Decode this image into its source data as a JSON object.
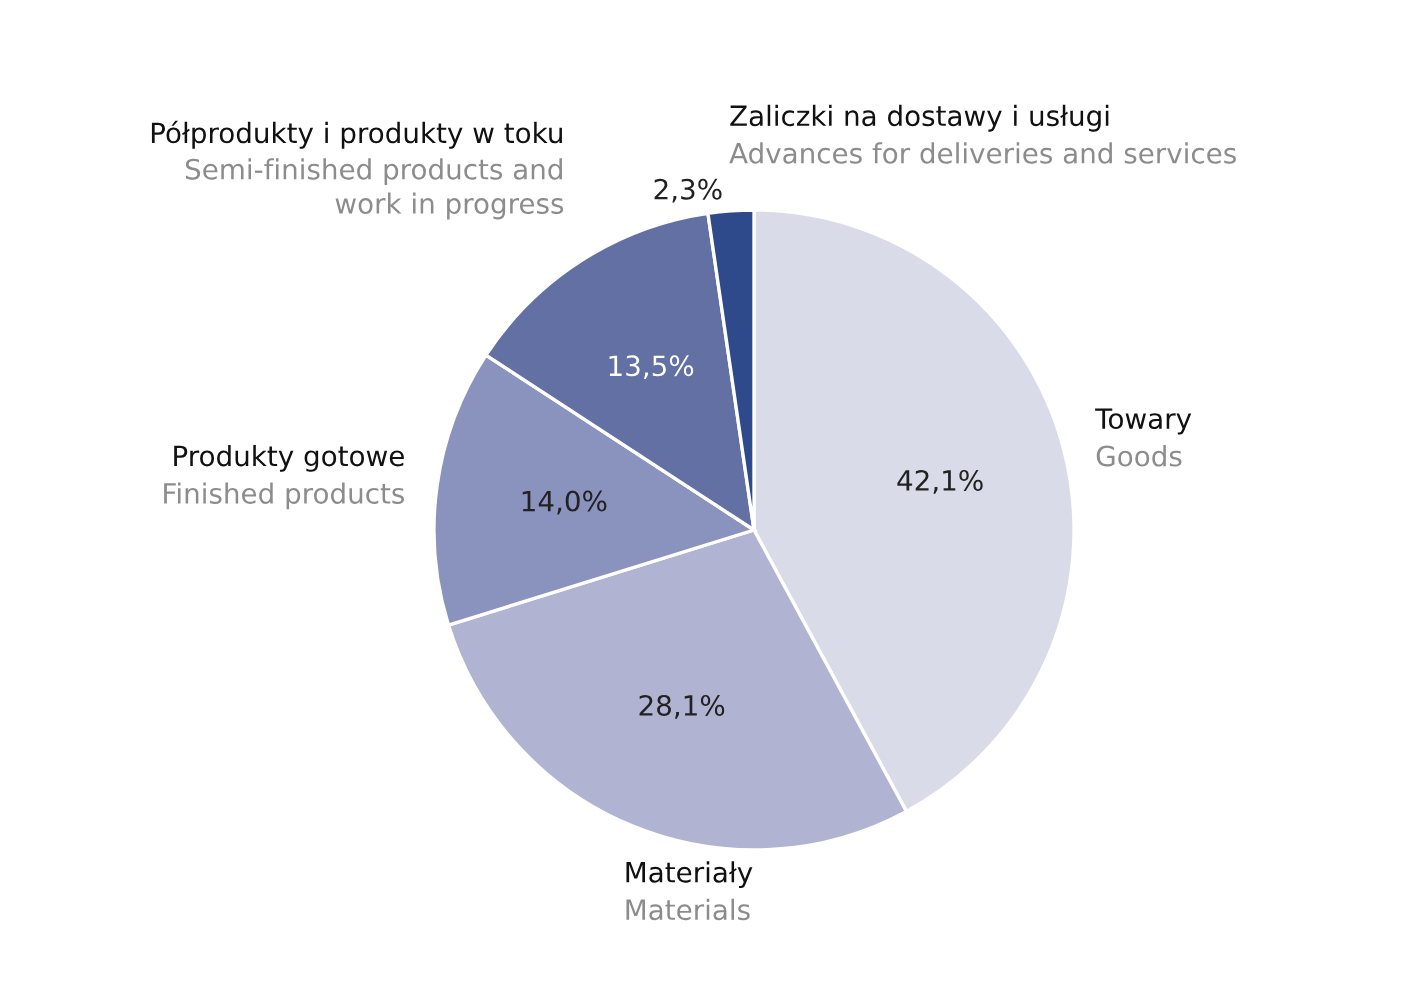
{
  "chart_data": {
    "type": "pie",
    "categories": [
      "Towary\nGoods",
      "Materiały\nMaterials",
      "Produkty gotowe\nFinished products",
      "Półprodukty i produkty w toku\nSemi-finished products and\nwork in progress",
      "Zaliczki na dostawy i usługi\nAdvances for deliveries and services"
    ],
    "values": [
      42.1,
      28.1,
      14.0,
      13.5,
      2.3
    ],
    "value_labels": [
      "42,1%",
      "28,1%",
      "14,0%",
      "13,5%",
      "2,3%"
    ],
    "colors": [
      "#d9dbe9",
      "#b0b4d2",
      "#8a93bd",
      "#6270a4",
      "#2f4a8a"
    ]
  }
}
